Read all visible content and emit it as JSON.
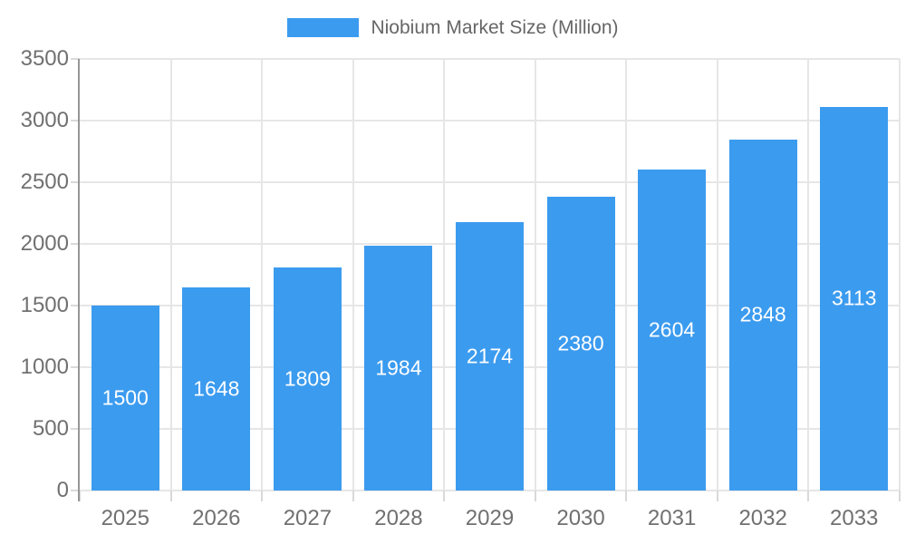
{
  "chart_data": {
    "type": "bar",
    "title": "Niobium Market Size (Million)",
    "legend": {
      "label": "Niobium Market Size (Million)",
      "position": "top"
    },
    "categories": [
      "2025",
      "2026",
      "2027",
      "2028",
      "2029",
      "2030",
      "2031",
      "2032",
      "2033"
    ],
    "series": [
      {
        "name": "Niobium Market Size (Million)",
        "values": [
          1500,
          1648,
          1809,
          1984,
          2174,
          2380,
          2604,
          2848,
          3113
        ]
      }
    ],
    "value_labels_shown": true,
    "xlabel": "",
    "ylabel": "",
    "ylim": [
      0,
      3500
    ],
    "y_ticks": [
      0,
      500,
      1000,
      1500,
      2000,
      2500,
      3000,
      3500
    ],
    "grid": {
      "horizontal": true,
      "vertical": true
    },
    "legend_position": "top",
    "colors": {
      "bar": "#3B9BEF",
      "grid_line": "#E6E6E6",
      "tick_mark": "#D9D9D9",
      "axis_line": "#969696",
      "axis_text": "#707070",
      "legend_text": "#666666",
      "value_text": "#FFFFFF",
      "background": "#FFFFFF"
    }
  }
}
